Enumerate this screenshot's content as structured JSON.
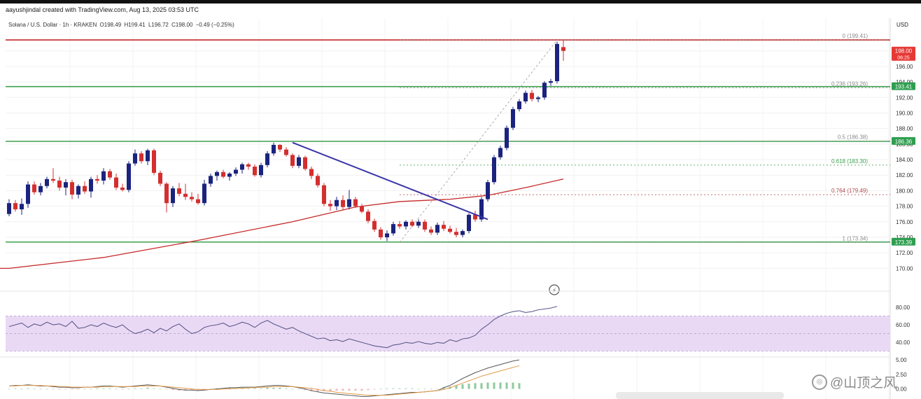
{
  "header": {
    "created_by": "aayushjindal created with TradingView.com, Aug 13, 2025 03:53 UTC"
  },
  "symbol_bar": {
    "name": "Solana / U.S. Dollar · 1h · KRAKEN",
    "open": "O198.49",
    "high": "H199.41",
    "low": "L196.72",
    "close": "C198.00",
    "change": "−0.49 (−0.25%)"
  },
  "currency": "USD",
  "price_axis_ticks": [
    "198.00",
    "196.00",
    "194.00",
    "192.00",
    "190.00",
    "188.00",
    "186.00",
    "184.00",
    "182.00",
    "180.00",
    "178.00",
    "176.00",
    "174.00",
    "172.00",
    "170.00"
  ],
  "price_badges": [
    {
      "label": "198.00",
      "sub": "06:25",
      "price": 198.0,
      "color": "#e53935"
    },
    {
      "label": "193.41",
      "price": 193.41,
      "color": "#2e9e4f"
    },
    {
      "label": "186.36",
      "price": 186.36,
      "color": "#2e9e4f"
    },
    {
      "label": "173.39",
      "price": 173.39,
      "color": "#2e9e4f"
    }
  ],
  "rsi_ticks": [
    "80.00",
    "60.00",
    "40.00"
  ],
  "macd_ticks": [
    "5.00",
    "2.50",
    "0.00"
  ],
  "watermark": "@山顶之风",
  "colors": {
    "up": "#1a237e",
    "down": "#d32f2f",
    "ma": "#c62828",
    "support": "#3ea04e",
    "resistance": "#c62828",
    "trendline": "#3a35a8",
    "fib": "#8a8a8a",
    "rsi": "#5b5b8a",
    "rsi_band": "#ead9f5"
  },
  "chart_data": {
    "type": "candlestick",
    "instrument": "Solana / U.S. Dollar",
    "timeframe": "1h",
    "exchange": "KRAKEN",
    "ylim": [
      168.5,
      200.5
    ],
    "candles": [
      {
        "o": 177.0,
        "h": 178.9,
        "l": 176.7,
        "c": 178.4
      },
      {
        "o": 178.4,
        "h": 178.8,
        "l": 177.3,
        "c": 177.6
      },
      {
        "o": 177.6,
        "h": 179.0,
        "l": 176.9,
        "c": 178.3
      },
      {
        "o": 178.3,
        "h": 181.2,
        "l": 177.8,
        "c": 180.8
      },
      {
        "o": 180.8,
        "h": 181.2,
        "l": 179.5,
        "c": 179.8
      },
      {
        "o": 179.8,
        "h": 181.0,
        "l": 179.4,
        "c": 180.6
      },
      {
        "o": 180.6,
        "h": 181.8,
        "l": 180.3,
        "c": 181.5
      },
      {
        "o": 181.5,
        "h": 182.9,
        "l": 181.0,
        "c": 181.3
      },
      {
        "o": 181.3,
        "h": 181.8,
        "l": 180.0,
        "c": 180.4
      },
      {
        "o": 180.4,
        "h": 181.5,
        "l": 179.4,
        "c": 181.1
      },
      {
        "o": 181.1,
        "h": 181.4,
        "l": 178.9,
        "c": 179.5
      },
      {
        "o": 179.5,
        "h": 180.8,
        "l": 179.0,
        "c": 180.6
      },
      {
        "o": 180.6,
        "h": 181.2,
        "l": 179.6,
        "c": 179.9
      },
      {
        "o": 179.9,
        "h": 181.8,
        "l": 179.1,
        "c": 181.5
      },
      {
        "o": 181.5,
        "h": 182.0,
        "l": 180.9,
        "c": 181.3
      },
      {
        "o": 181.3,
        "h": 182.9,
        "l": 180.8,
        "c": 182.5
      },
      {
        "o": 182.5,
        "h": 182.8,
        "l": 181.4,
        "c": 181.7
      },
      {
        "o": 181.7,
        "h": 182.2,
        "l": 180.1,
        "c": 180.4
      },
      {
        "o": 180.4,
        "h": 180.9,
        "l": 179.9,
        "c": 180.1
      },
      {
        "o": 180.1,
        "h": 183.8,
        "l": 179.8,
        "c": 183.5
      },
      {
        "o": 183.5,
        "h": 185.3,
        "l": 183.2,
        "c": 184.8
      },
      {
        "o": 184.8,
        "h": 185.1,
        "l": 183.5,
        "c": 183.8
      },
      {
        "o": 183.8,
        "h": 185.4,
        "l": 183.3,
        "c": 185.2
      },
      {
        "o": 185.2,
        "h": 185.4,
        "l": 182.0,
        "c": 182.3
      },
      {
        "o": 182.3,
        "h": 182.6,
        "l": 180.6,
        "c": 180.9
      },
      {
        "o": 180.9,
        "h": 181.1,
        "l": 177.2,
        "c": 178.4
      },
      {
        "o": 178.4,
        "h": 180.6,
        "l": 177.9,
        "c": 180.3
      },
      {
        "o": 180.3,
        "h": 181.0,
        "l": 179.3,
        "c": 179.6
      },
      {
        "o": 179.6,
        "h": 180.9,
        "l": 178.8,
        "c": 179.2
      },
      {
        "o": 179.2,
        "h": 179.8,
        "l": 178.6,
        "c": 178.9
      },
      {
        "o": 178.9,
        "h": 179.6,
        "l": 178.2,
        "c": 178.4
      },
      {
        "o": 178.4,
        "h": 181.4,
        "l": 178.1,
        "c": 180.9
      },
      {
        "o": 180.9,
        "h": 182.2,
        "l": 180.5,
        "c": 181.9
      },
      {
        "o": 181.9,
        "h": 182.6,
        "l": 181.3,
        "c": 182.4
      },
      {
        "o": 182.4,
        "h": 182.7,
        "l": 181.6,
        "c": 181.8
      },
      {
        "o": 181.8,
        "h": 182.4,
        "l": 181.3,
        "c": 182.2
      },
      {
        "o": 182.2,
        "h": 183.0,
        "l": 181.9,
        "c": 182.7
      },
      {
        "o": 182.7,
        "h": 183.6,
        "l": 182.2,
        "c": 183.4
      },
      {
        "o": 183.4,
        "h": 183.6,
        "l": 182.7,
        "c": 183.1
      },
      {
        "o": 183.1,
        "h": 183.4,
        "l": 181.8,
        "c": 182.0
      },
      {
        "o": 182.0,
        "h": 183.6,
        "l": 181.7,
        "c": 183.3
      },
      {
        "o": 183.3,
        "h": 185.1,
        "l": 183.0,
        "c": 184.8
      },
      {
        "o": 184.8,
        "h": 186.2,
        "l": 184.5,
        "c": 185.9
      },
      {
        "o": 185.9,
        "h": 186.0,
        "l": 185.0,
        "c": 185.3
      },
      {
        "o": 185.3,
        "h": 185.6,
        "l": 184.4,
        "c": 184.6
      },
      {
        "o": 184.6,
        "h": 184.8,
        "l": 182.9,
        "c": 183.2
      },
      {
        "o": 183.2,
        "h": 184.6,
        "l": 182.9,
        "c": 184.3
      },
      {
        "o": 184.3,
        "h": 184.5,
        "l": 182.6,
        "c": 182.8
      },
      {
        "o": 182.8,
        "h": 183.1,
        "l": 181.5,
        "c": 181.9
      },
      {
        "o": 181.9,
        "h": 182.2,
        "l": 180.4,
        "c": 180.7
      },
      {
        "o": 180.7,
        "h": 181.0,
        "l": 178.0,
        "c": 178.3
      },
      {
        "o": 178.3,
        "h": 178.8,
        "l": 177.4,
        "c": 178.0
      },
      {
        "o": 178.0,
        "h": 179.2,
        "l": 177.5,
        "c": 178.8
      },
      {
        "o": 178.8,
        "h": 179.4,
        "l": 177.5,
        "c": 177.9
      },
      {
        "o": 177.9,
        "h": 180.1,
        "l": 177.6,
        "c": 178.9
      },
      {
        "o": 178.9,
        "h": 179.2,
        "l": 177.8,
        "c": 178.0
      },
      {
        "o": 178.0,
        "h": 178.3,
        "l": 177.1,
        "c": 177.3
      },
      {
        "o": 177.3,
        "h": 177.6,
        "l": 175.8,
        "c": 176.1
      },
      {
        "o": 176.1,
        "h": 176.4,
        "l": 174.7,
        "c": 175.0
      },
      {
        "o": 175.0,
        "h": 175.3,
        "l": 173.7,
        "c": 174.0
      },
      {
        "o": 174.0,
        "h": 174.9,
        "l": 173.5,
        "c": 174.5
      },
      {
        "o": 174.5,
        "h": 176.0,
        "l": 174.2,
        "c": 175.7
      },
      {
        "o": 175.7,
        "h": 176.1,
        "l": 175.1,
        "c": 175.4
      },
      {
        "o": 175.4,
        "h": 176.2,
        "l": 175.0,
        "c": 176.0
      },
      {
        "o": 176.0,
        "h": 176.3,
        "l": 175.3,
        "c": 175.5
      },
      {
        "o": 175.5,
        "h": 176.3,
        "l": 175.2,
        "c": 176.0
      },
      {
        "o": 176.0,
        "h": 176.3,
        "l": 174.7,
        "c": 175.0
      },
      {
        "o": 175.0,
        "h": 175.4,
        "l": 174.3,
        "c": 174.6
      },
      {
        "o": 174.6,
        "h": 175.9,
        "l": 174.3,
        "c": 175.6
      },
      {
        "o": 175.6,
        "h": 176.1,
        "l": 174.8,
        "c": 175.1
      },
      {
        "o": 175.1,
        "h": 175.5,
        "l": 174.5,
        "c": 174.7
      },
      {
        "o": 174.7,
        "h": 175.2,
        "l": 174.0,
        "c": 174.3
      },
      {
        "o": 174.3,
        "h": 175.0,
        "l": 174.0,
        "c": 174.8
      },
      {
        "o": 174.8,
        "h": 177.1,
        "l": 174.5,
        "c": 176.9
      },
      {
        "o": 176.9,
        "h": 177.4,
        "l": 176.0,
        "c": 176.3
      },
      {
        "o": 176.3,
        "h": 179.2,
        "l": 176.0,
        "c": 178.9
      },
      {
        "o": 178.9,
        "h": 181.4,
        "l": 178.6,
        "c": 181.1
      },
      {
        "o": 181.1,
        "h": 184.6,
        "l": 180.8,
        "c": 184.3
      },
      {
        "o": 184.3,
        "h": 185.8,
        "l": 184.0,
        "c": 185.5
      },
      {
        "o": 185.5,
        "h": 188.4,
        "l": 185.2,
        "c": 188.1
      },
      {
        "o": 188.1,
        "h": 190.8,
        "l": 187.8,
        "c": 190.5
      },
      {
        "o": 190.5,
        "h": 191.8,
        "l": 190.2,
        "c": 191.5
      },
      {
        "o": 191.5,
        "h": 192.9,
        "l": 191.2,
        "c": 192.6
      },
      {
        "o": 192.6,
        "h": 193.0,
        "l": 191.5,
        "c": 191.8
      },
      {
        "o": 191.8,
        "h": 192.2,
        "l": 191.4,
        "c": 192.0
      },
      {
        "o": 192.0,
        "h": 194.1,
        "l": 191.7,
        "c": 193.9
      },
      {
        "o": 193.9,
        "h": 194.4,
        "l": 193.5,
        "c": 194.1
      },
      {
        "o": 194.1,
        "h": 199.2,
        "l": 193.8,
        "c": 198.9
      },
      {
        "o": 198.49,
        "h": 199.41,
        "l": 196.72,
        "c": 198.0
      }
    ],
    "moving_average": [
      {
        "i": 0,
        "v": 170.0
      },
      {
        "i": 15,
        "v": 171.4
      },
      {
        "i": 30,
        "v": 173.6
      },
      {
        "i": 45,
        "v": 176.0
      },
      {
        "i": 55,
        "v": 177.9
      },
      {
        "i": 62,
        "v": 178.6
      },
      {
        "i": 70,
        "v": 178.9
      },
      {
        "i": 76,
        "v": 179.4
      },
      {
        "i": 82,
        "v": 180.4
      },
      {
        "i": 88,
        "v": 181.5
      }
    ],
    "horizontal_levels": [
      {
        "price": 199.41,
        "kind": "resistance"
      },
      {
        "price": 193.41,
        "kind": "support"
      },
      {
        "price": 186.36,
        "kind": "support"
      },
      {
        "price": 173.39,
        "kind": "support"
      }
    ],
    "trendline": [
      {
        "i": 45,
        "price": 186.2
      },
      {
        "i": 76,
        "price": 176.3
      }
    ],
    "fibonacci": {
      "from": {
        "i": 62,
        "price": 173.34
      },
      "to": {
        "i": 87,
        "price": 199.41
      },
      "levels": [
        {
          "ratio": "0",
          "label": "0 (199.41)",
          "price": 199.41
        },
        {
          "ratio": "0.236",
          "label": "0.236 (193.26)",
          "price": 193.26
        },
        {
          "ratio": "0.5",
          "label": "0.5 (186.38)",
          "price": 186.38
        },
        {
          "ratio": "0.618",
          "label": "0.618 (183.30)",
          "price": 183.3
        },
        {
          "ratio": "0.764",
          "label": "0.764 (179.49)",
          "price": 179.49
        },
        {
          "ratio": "1",
          "label": "1 (173.34)",
          "price": 173.34
        }
      ]
    },
    "rsi": {
      "ylim": [
        25,
        95
      ],
      "band": [
        30,
        70
      ],
      "values": [
        58,
        60,
        62,
        57,
        61,
        59,
        63,
        60,
        61,
        58,
        64,
        56,
        57,
        60,
        58,
        62,
        59,
        57,
        60,
        54,
        50,
        52,
        55,
        51,
        56,
        53,
        58,
        61,
        55,
        50,
        52,
        57,
        59,
        60,
        62,
        58,
        60,
        63,
        61,
        57,
        62,
        65,
        61,
        58,
        55,
        57,
        53,
        50,
        47,
        44,
        45,
        42,
        43,
        41,
        44,
        42,
        40,
        38,
        36,
        35,
        34,
        37,
        38,
        40,
        39,
        41,
        39,
        38,
        40,
        39,
        43,
        41,
        44,
        45,
        48,
        55,
        60,
        66,
        70,
        73,
        75,
        76,
        74,
        75,
        77,
        78,
        79,
        81
      ]
    },
    "macd": {
      "ylim": [
        -1.5,
        5.5
      ],
      "macd_line": [
        0.5,
        0.6,
        0.6,
        0.7,
        0.6,
        0.5,
        0.5,
        0.4,
        0.3,
        0.3,
        0.2,
        0.2,
        0.3,
        0.3,
        0.4,
        0.5,
        0.5,
        0.4,
        0.3,
        0.4,
        0.5,
        0.6,
        0.7,
        0.6,
        0.5,
        0.3,
        0.1,
        -0.1,
        -0.2,
        -0.2,
        -0.3,
        -0.2,
        -0.1,
        0.0,
        0.1,
        0.2,
        0.2,
        0.3,
        0.3,
        0.3,
        0.4,
        0.5,
        0.6,
        0.6,
        0.5,
        0.4,
        0.2,
        0.0,
        -0.3,
        -0.5,
        -0.7,
        -0.8,
        -0.9,
        -1.0,
        -1.1,
        -1.2,
        -1.3,
        -1.3,
        -1.2,
        -1.1,
        -1.0,
        -0.9,
        -0.8,
        -0.7,
        -0.6,
        -0.6,
        -0.5,
        -0.4,
        -0.3,
        0.2,
        0.6,
        1.2,
        1.8,
        2.3,
        2.8,
        3.2,
        3.6,
        3.9,
        4.2,
        4.5,
        4.8,
        5.0
      ],
      "signal_line": [
        0.5,
        0.5,
        0.6,
        0.6,
        0.6,
        0.6,
        0.5,
        0.5,
        0.4,
        0.4,
        0.3,
        0.3,
        0.3,
        0.3,
        0.3,
        0.4,
        0.4,
        0.4,
        0.4,
        0.4,
        0.4,
        0.5,
        0.5,
        0.5,
        0.5,
        0.4,
        0.3,
        0.2,
        0.1,
        0.0,
        -0.1,
        -0.1,
        -0.1,
        -0.1,
        0.0,
        0.0,
        0.1,
        0.1,
        0.2,
        0.2,
        0.3,
        0.3,
        0.4,
        0.4,
        0.4,
        0.4,
        0.3,
        0.2,
        0.1,
        -0.1,
        -0.3,
        -0.4,
        -0.6,
        -0.7,
        -0.8,
        -0.9,
        -1.0,
        -1.1,
        -1.1,
        -1.1,
        -1.1,
        -1.0,
        -0.9,
        -0.8,
        -0.7,
        -0.6,
        -0.5,
        -0.4,
        -0.3,
        -0.1,
        0.2,
        0.6,
        1.0,
        1.4,
        1.8,
        2.2,
        2.5,
        2.8,
        3.1,
        3.4,
        3.7,
        4.0
      ]
    }
  }
}
